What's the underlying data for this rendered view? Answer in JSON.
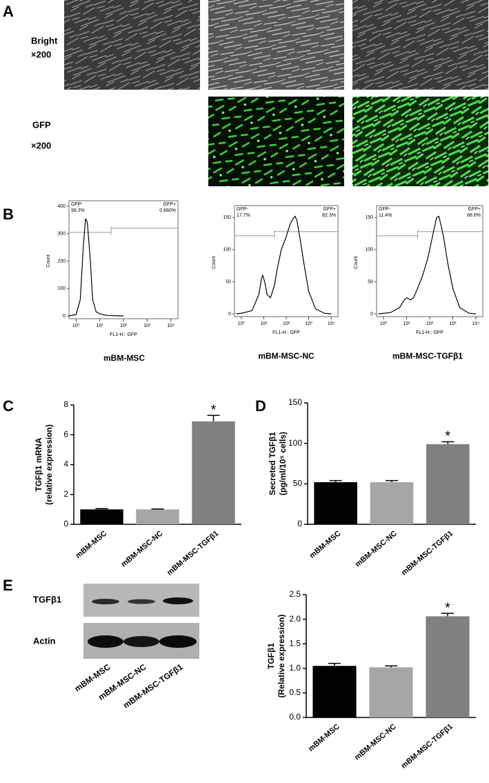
{
  "figure": {
    "panel_labels": [
      "A",
      "B",
      "C",
      "D",
      "E"
    ]
  },
  "microscopy": {
    "rows": [
      {
        "label": [
          "Bright",
          "×200"
        ]
      },
      {
        "label": [
          "GFP",
          "×200"
        ]
      }
    ]
  },
  "western_blot": {
    "bands": [
      "TGFβ1",
      "Actin"
    ],
    "lanes": [
      "mBM-MSC",
      "mBM-MSC-NC",
      "mBM-MSC-TGFβ1"
    ]
  },
  "chart_data": [
    {
      "type": "line",
      "title": "mBM-MSC",
      "xlabel": "FL1-H:: GFP",
      "ylabel": "Count",
      "log_x": true,
      "xlim": [
        0.5,
        20000
      ],
      "xticks": [
        {
          "value": 1,
          "label": "10⁰"
        },
        {
          "value": 10,
          "label": "10¹"
        },
        {
          "value": 100,
          "label": "10²"
        },
        {
          "value": 1000,
          "label": "10³"
        },
        {
          "value": 10000,
          "label": "10⁴"
        }
      ],
      "ylim": [
        0,
        400
      ],
      "yticks": [
        0,
        100,
        200,
        300,
        400
      ],
      "color": "#000000",
      "gate_threshold": 30,
      "gates": [
        {
          "name": "GFP-",
          "value": 99.3,
          "value_label": "99.3%"
        },
        {
          "name": "GFP+",
          "value": 0.66,
          "value_label": "0.660%"
        }
      ],
      "x": [
        0.5,
        1,
        1.5,
        2,
        2.5,
        3,
        4,
        5,
        7,
        10,
        15,
        20,
        50,
        100
      ],
      "values": [
        0,
        5,
        60,
        250,
        355,
        340,
        200,
        60,
        15,
        8,
        4,
        2,
        1,
        0
      ]
    },
    {
      "type": "line",
      "title": "mBM-MSC-NC",
      "xlabel": "FL1-H:: GFP",
      "ylabel": "Count",
      "log_x": true,
      "xlim": [
        0.5,
        20000
      ],
      "xticks": [
        {
          "value": 1,
          "label": "10⁰"
        },
        {
          "value": 10,
          "label": "10¹"
        },
        {
          "value": 100,
          "label": "10²"
        },
        {
          "value": 1000,
          "label": "10³"
        },
        {
          "value": 10000,
          "label": "10⁴"
        }
      ],
      "ylim": [
        0,
        160
      ],
      "yticks": [
        0,
        50,
        100,
        150
      ],
      "color": "#000000",
      "gate_threshold": 30,
      "gates": [
        {
          "name": "GFP-",
          "value": 17.7,
          "value_label": "17.7%"
        },
        {
          "name": "GFP+",
          "value": 82.3,
          "value_label": "82.3%"
        }
      ],
      "x": [
        0.6,
        1,
        3,
        6,
        8,
        9,
        11,
        14,
        20,
        30,
        40,
        60,
        100,
        150,
        200,
        250,
        300,
        400,
        600,
        1000,
        2000,
        5000,
        10000
      ],
      "values": [
        0,
        1,
        5,
        30,
        55,
        60,
        50,
        30,
        25,
        45,
        70,
        100,
        120,
        140,
        148,
        152,
        145,
        120,
        80,
        35,
        8,
        1,
        0
      ]
    },
    {
      "type": "line",
      "title": "mBM-MSC-TGFβ1",
      "xlabel": "FL1-H:: GFP",
      "ylabel": "Count",
      "log_x": true,
      "xlim": [
        0.5,
        20000
      ],
      "xticks": [
        {
          "value": 1,
          "label": "10⁰"
        },
        {
          "value": 10,
          "label": "10¹"
        },
        {
          "value": 100,
          "label": "10²"
        },
        {
          "value": 1000,
          "label": "10³"
        },
        {
          "value": 10000,
          "label": "10⁴"
        }
      ],
      "ylim": [
        0,
        160
      ],
      "yticks": [
        0,
        50,
        100,
        150
      ],
      "color": "#000000",
      "gate_threshold": 30,
      "gates": [
        {
          "name": "GFP-",
          "value": 11.4,
          "value_label": "11.4%"
        },
        {
          "name": "GFP+",
          "value": 88.6,
          "value_label": "88.6%"
        }
      ],
      "x": [
        0.6,
        2,
        5,
        8,
        10,
        15,
        20,
        30,
        50,
        80,
        100,
        150,
        200,
        250,
        300,
        400,
        600,
        1000,
        2000,
        5000,
        10000
      ],
      "values": [
        0,
        2,
        10,
        22,
        25,
        22,
        25,
        40,
        60,
        85,
        100,
        130,
        150,
        152,
        140,
        120,
        80,
        40,
        10,
        1,
        0
      ]
    },
    {
      "type": "bar",
      "ylabel": [
        "TGFβ1 mRNA",
        "(relative expression)"
      ],
      "categories": [
        "mBM-MSC",
        "mBM-MSC-NC",
        "mBM-MSC-TGFβ1"
      ],
      "values": [
        1.0,
        1.0,
        6.9
      ],
      "errors": [
        0.05,
        0.03,
        0.4
      ],
      "colors": [
        "#000000",
        "#a6a6a6",
        "#808080"
      ],
      "significance": [
        null,
        null,
        "*"
      ],
      "ylim": [
        0,
        8
      ],
      "yticks": [
        0,
        2,
        4,
        6,
        8
      ]
    },
    {
      "type": "bar",
      "ylabel": [
        "Secreted TGFβ1",
        "(pg/ml/10⁵ cells)"
      ],
      "categories": [
        "mBM-MSC",
        "mBM-MSC-NC",
        "mBM-MSC-TGFβ1"
      ],
      "values": [
        52,
        52,
        99
      ],
      "errors": [
        2,
        2,
        3
      ],
      "colors": [
        "#000000",
        "#a6a6a6",
        "#808080"
      ],
      "significance": [
        null,
        null,
        "*"
      ],
      "ylim": [
        0,
        150
      ],
      "yticks": [
        0,
        50,
        100,
        150
      ]
    },
    {
      "type": "bar",
      "ylabel": [
        "TGFβ1",
        "(Relative expression)"
      ],
      "categories": [
        "mBM-MSC",
        "mBM-MSC-NC",
        "mBM-MSC-TGFβ1"
      ],
      "values": [
        1.05,
        1.02,
        2.06
      ],
      "errors": [
        0.05,
        0.03,
        0.06
      ],
      "colors": [
        "#000000",
        "#a6a6a6",
        "#808080"
      ],
      "significance": [
        null,
        null,
        "*"
      ],
      "ylim": [
        0,
        2.5
      ],
      "yticks": [
        {
          "value": 0,
          "label": "0.0"
        },
        0.5,
        {
          "value": 1,
          "label": "1.0"
        },
        1.5,
        {
          "value": 2,
          "label": "2.0"
        },
        2.5
      ]
    }
  ]
}
